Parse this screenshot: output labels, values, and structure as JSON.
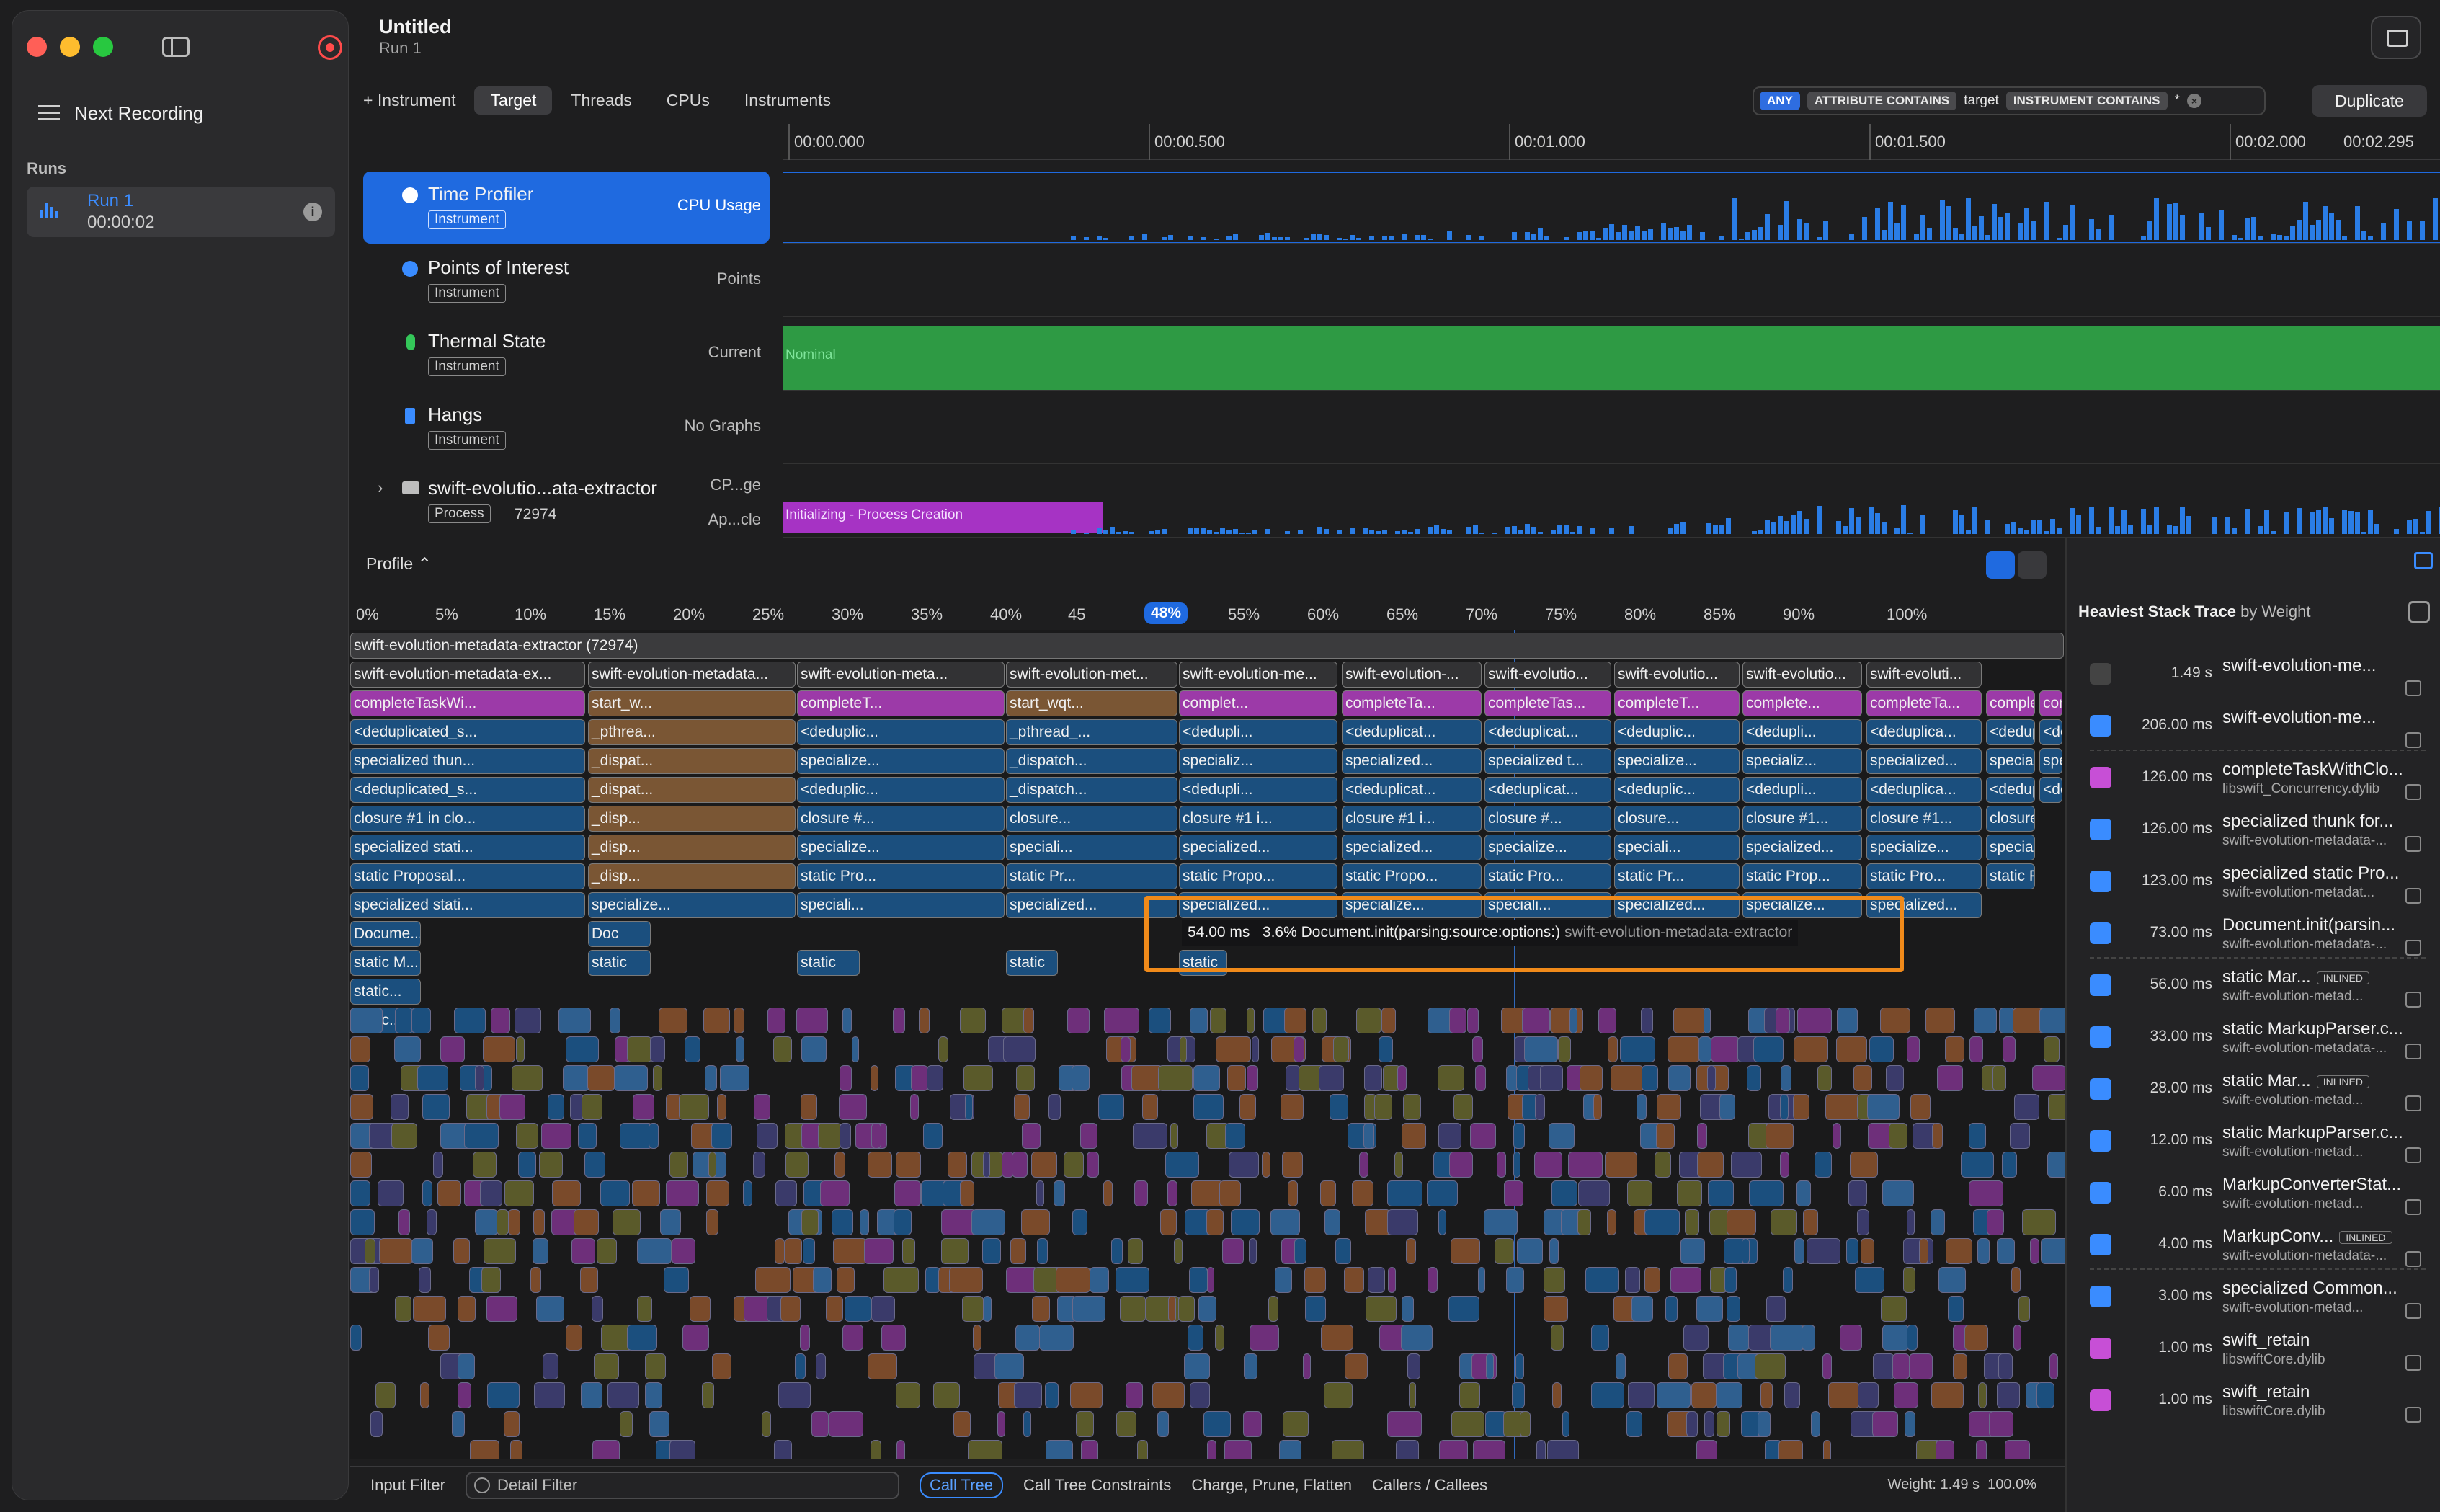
{
  "window": {
    "title": "Untitled",
    "subtitle": "Run 1"
  },
  "sidebar": {
    "next_recording": "Next Recording",
    "runs_header": "Runs",
    "run": {
      "name": "Run 1",
      "duration": "00:00:02"
    }
  },
  "toolbar": {
    "add_instrument": "+ Instrument",
    "tabs": [
      "Target",
      "Threads",
      "CPUs",
      "Instruments"
    ],
    "active_tab": "Target",
    "duplicate": "Duplicate"
  },
  "filter": {
    "any": "ANY",
    "attr": "ATTRIBUTE CONTAINS",
    "attr_value": "target",
    "inst": "INSTRUMENT CONTAINS",
    "inst_value": "*"
  },
  "timeline": {
    "ticks": [
      "00:00.000",
      "00:00.500",
      "00:01.000",
      "00:01.500",
      "00:02.000",
      "00:02.295"
    ]
  },
  "tracks": [
    {
      "name": "Time Profiler",
      "tag": "Instrument",
      "right": "CPU Usage",
      "color": "#ffffff"
    },
    {
      "name": "Points of Interest",
      "tag": "Instrument",
      "right": "Points",
      "color": "#3a8cff"
    },
    {
      "name": "Thermal State",
      "tag": "Instrument",
      "right": "Current",
      "color": "#34c759"
    },
    {
      "name": "Hangs",
      "tag": "Instrument",
      "right": "No Graphs",
      "color": "#3a8cff"
    },
    {
      "name": "swift-evolutio...ata-extractor",
      "tag": "Process",
      "pid": "72974",
      "right_top": "CP...ge",
      "right_bottom": "Ap...cle"
    }
  ],
  "thermal_label": "Nominal",
  "process_band_label": "Initializing - Process Creation",
  "profile": {
    "selector": "Profile",
    "pct_ticks": [
      "0%",
      "5%",
      "10%",
      "15%",
      "20%",
      "25%",
      "30%",
      "35%",
      "40%",
      "45",
      "50%",
      "55%",
      "60%",
      "65%",
      "70%",
      "75%",
      "80%",
      "85%",
      "90%",
      "100%"
    ],
    "pct_marker": "48%"
  },
  "flame": {
    "root": "swift-evolution-metadata-extractor (72974)",
    "rows": [
      [
        "swift-evolution-metadata-ex...",
        "swift-evolution-metadata...",
        "swift-evolution-meta...",
        "swift-evolution-met...",
        "swift-evolution-me...",
        "swift-evolution-...",
        "swift-evolutio...",
        "swift-evolutio...",
        "swift-evolutio...",
        "swift-evoluti..."
      ],
      [
        "completeTaskWi...",
        "start_w...",
        "completeT...",
        "start_wqt...",
        "complet...",
        "completeTa...",
        "completeTas...",
        "completeT...",
        "complete...",
        "completeTa...",
        "completeT...",
        "completeTa..."
      ],
      [
        "<deduplicated_s...",
        "_pthrea...",
        "<deduplic...",
        "_pthread_...",
        "<dedupli...",
        "<deduplicat...",
        "<deduplicat...",
        "<deduplic...",
        "<dedupli...",
        "<deduplica...",
        "<deduplic...",
        "<deduplica..."
      ],
      [
        "specialized thun...",
        "_dispat...",
        "specialize...",
        "_dispatch...",
        "specializ...",
        "specialized...",
        "specialized t...",
        "specialize...",
        "specializ...",
        "specialized...",
        "specialize...",
        "specialized..."
      ],
      [
        "<deduplicated_s...",
        "_dispat...",
        "<deduplic...",
        "_dispatch...",
        "<dedupli...",
        "<deduplicat...",
        "<deduplicat...",
        "<deduplic...",
        "<dedupli...",
        "<deduplica...",
        "<deduplic...",
        "<deduplica..."
      ],
      [
        "closure #1 in clo...",
        "_disp...",
        "closure #...",
        "closure...",
        "closure #1 i...",
        "closure #1 i...",
        "closure #...",
        "closure...",
        "closure #1...",
        "closure #1...",
        "closure #1..."
      ],
      [
        "specialized stati...",
        "_disp...",
        "specialize...",
        "speciali...",
        "specialized...",
        "specialized...",
        "specialize...",
        "speciali...",
        "specialized...",
        "specialize...",
        "specialized..."
      ],
      [
        "static Proposal...",
        "_disp...",
        "static Pro...",
        "static Pr...",
        "static Propo...",
        "static Propo...",
        "static Pro...",
        "static Pr...",
        "static Prop...",
        "static Pro...",
        "static Prop..."
      ],
      [
        "specialized stati...",
        "specialize...",
        "speciali...",
        "specialized...",
        "specialized...",
        "specialize...",
        "speciali...",
        "specialized...",
        "specialize...",
        "specialized..."
      ],
      [
        "Docume...",
        "Doc"
      ],
      [
        "static M...",
        "static",
        "static",
        "static",
        "static"
      ],
      [
        "static..."
      ],
      [
        "static..."
      ]
    ]
  },
  "tooltip": {
    "ms": "54.00 ms",
    "pct": "3.6%",
    "fn": "Document.init(parsing:source:options:)",
    "lib": "swift-evolution-metadata-extractor"
  },
  "bottom_bar": {
    "input_filter": "Input Filter",
    "detail_filter": "Detail Filter",
    "buttons": [
      "Call Tree",
      "Call Tree Constraints",
      "Charge, Prune, Flatten",
      "Callers / Callees"
    ],
    "active": "Call Tree",
    "weight": "Weight: 1.49 s",
    "percent": "100.0%"
  },
  "stack_trace": {
    "title": "Heaviest Stack Trace",
    "by": "by Weight",
    "rows": [
      {
        "ms": "1.49 s",
        "fn": "swift-evolution-me...",
        "lib": "",
        "icon": "terminal-icon",
        "color": "#444"
      },
      {
        "ms": "206.00 ms",
        "fn": "swift-evolution-me...",
        "lib": "",
        "icon": "thread-icon",
        "color": "#3a8cff"
      },
      {
        "ms": "126.00 ms",
        "fn": "completeTaskWithClo...",
        "lib": "libswift_Concurrency.dylib",
        "icon": "code-icon",
        "color": "#c74fd6"
      },
      {
        "ms": "126.00 ms",
        "fn": "specialized thunk for...",
        "lib": "swift-evolution-metadata-...",
        "icon": "user-icon",
        "color": "#3a8cff"
      },
      {
        "ms": "123.00 ms",
        "fn": "specialized static Pro...",
        "lib": "swift-evolution-metadat...",
        "icon": "user-icon",
        "color": "#3a8cff"
      },
      {
        "ms": "73.00 ms",
        "fn": "Document.init(parsin...",
        "lib": "swift-evolution-metadata-...",
        "icon": "user-icon",
        "color": "#3a8cff"
      },
      {
        "ms": "56.00 ms",
        "fn": "static Mar...",
        "inlined": "INLINED",
        "lib": "swift-evolution-metad...",
        "icon": "user-icon",
        "color": "#3a8cff"
      },
      {
        "ms": "33.00 ms",
        "fn": "static MarkupParser.c...",
        "lib": "swift-evolution-metadata-...",
        "icon": "user-icon",
        "color": "#3a8cff"
      },
      {
        "ms": "28.00 ms",
        "fn": "static Mar...",
        "inlined": "INLINED",
        "lib": "swift-evolution-metad...",
        "icon": "user-icon",
        "color": "#3a8cff"
      },
      {
        "ms": "12.00 ms",
        "fn": "static MarkupParser.c...",
        "lib": "swift-evolution-metad...",
        "icon": "user-icon",
        "color": "#3a8cff"
      },
      {
        "ms": "6.00 ms",
        "fn": "MarkupConverterStat...",
        "lib": "swift-evolution-metad...",
        "icon": "user-icon",
        "color": "#3a8cff"
      },
      {
        "ms": "4.00 ms",
        "fn": "MarkupConv...",
        "inlined": "INLINED",
        "lib": "swift-evolution-metadata-...",
        "icon": "user-icon",
        "color": "#3a8cff"
      },
      {
        "ms": "3.00 ms",
        "fn": "specialized Common...",
        "lib": "swift-evolution-metad...",
        "icon": "user-icon",
        "color": "#3a8cff"
      },
      {
        "ms": "1.00 ms",
        "fn": "swift_retain",
        "lib": "libswiftCore.dylib",
        "icon": "code-icon",
        "color": "#c74fd6"
      },
      {
        "ms": "1.00 ms",
        "fn": "swift_retain",
        "lib": "libswiftCore.dylib",
        "icon": "code-icon",
        "color": "#c74fd6"
      }
    ]
  }
}
